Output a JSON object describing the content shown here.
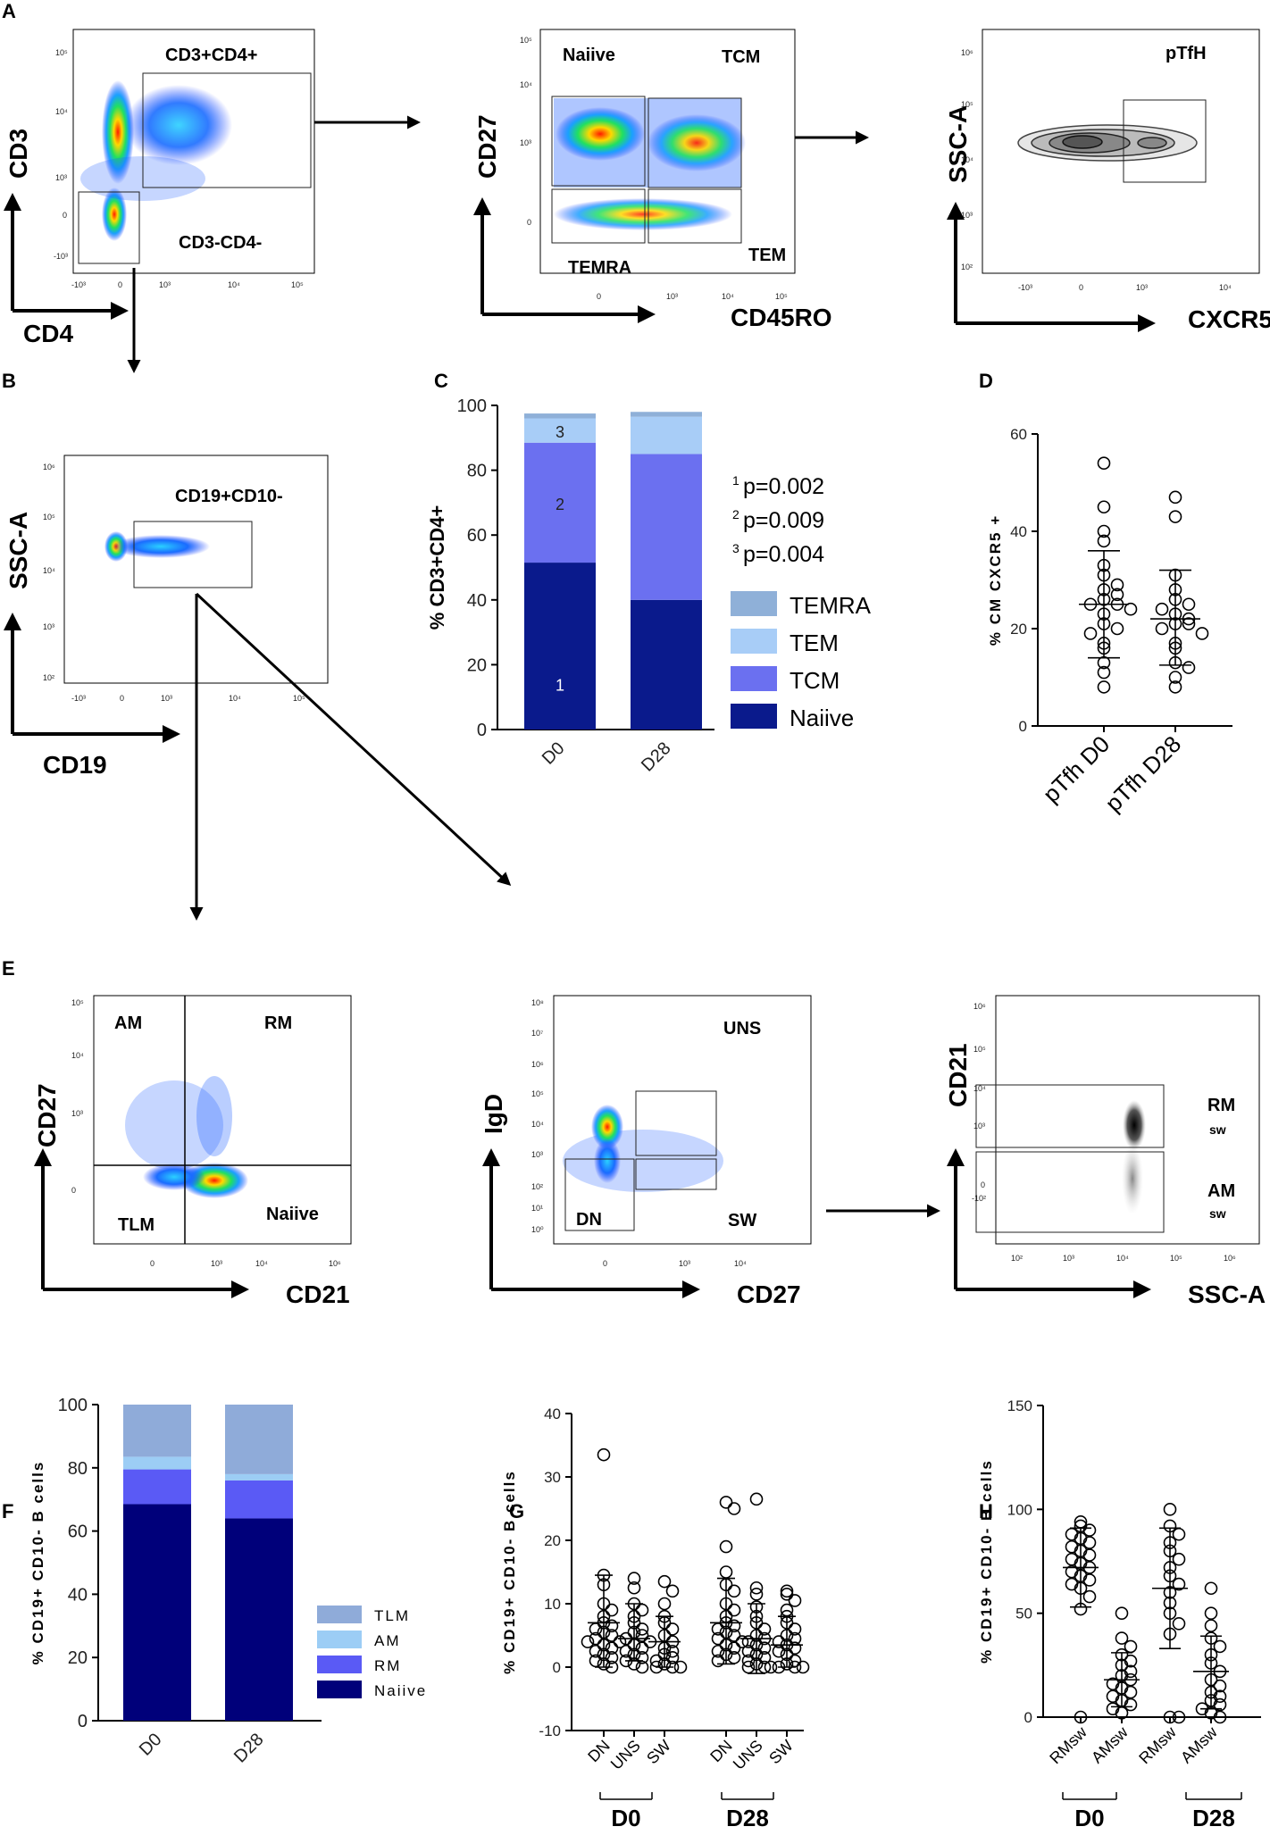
{
  "panel_letters": {
    "A": "A",
    "B": "B",
    "C": "C",
    "D": "D",
    "E": "E",
    "F": "F",
    "G": "G",
    "H": "H"
  },
  "log_ticks": {
    "n3": "-10³",
    "zero": "0",
    "p3": "10³",
    "p4": "10⁴",
    "p5": "10⁵",
    "p6": "10⁶",
    "p2": "10²",
    "p7": "10⁷",
    "p8": "10⁸",
    "p1": "10¹",
    "p0": "10⁰",
    "n2": "-10²"
  },
  "panel_a": {
    "plot1": {
      "y_label": "CD3",
      "x_label": "CD4",
      "gate_top": "CD3+CD4+",
      "gate_bottom": "CD3-CD4-"
    },
    "plot2": {
      "y_label": "CD27",
      "x_label": "CD45RO",
      "q_tl": "Naiive",
      "q_tr": "TCM",
      "q_bl": "TEMRA",
      "q_br": "TEM"
    },
    "plot3": {
      "y_label": "SSC-A",
      "x_label": "CXCR5",
      "gate": "pTfH"
    }
  },
  "panel_b": {
    "y_label": "SSC-A",
    "x_label": "CD19",
    "gate": "CD19+CD10-"
  },
  "panel_e": {
    "plot1": {
      "y_label": "CD27",
      "x_label": "CD21",
      "q_tl": "AM",
      "q_tr": "RM",
      "q_bl": "TLM",
      "q_br": "Naiive"
    },
    "plot2": {
      "y_label": "IgD",
      "x_label": "CD27",
      "q_tr": "UNS",
      "q_bl": "DN",
      "q_br": "SW"
    },
    "plot3": {
      "y_label": "CD21",
      "x_label": "SSC-A",
      "top_main": "RM",
      "top_sub": "sw",
      "bot_main": "AM",
      "bot_sub": "sw"
    }
  },
  "chart_data": [
    {
      "id": "C",
      "type": "bar",
      "stacked": true,
      "categories": [
        "D0",
        "D28"
      ],
      "ylabel": "% CD3+CD4+",
      "ylim": [
        0,
        100
      ],
      "yticks": [
        "0",
        "20",
        "40",
        "60",
        "80",
        "100"
      ],
      "series": [
        {
          "name": "Naiive",
          "values": [
            51.5,
            40
          ],
          "color": "#0a1a8c"
        },
        {
          "name": "TCM",
          "values": [
            37,
            45
          ],
          "color": "#6b70f0"
        },
        {
          "name": "TEM",
          "values": [
            7.5,
            11.5
          ],
          "color": "#a8cdf7"
        },
        {
          "name": "TEMRA",
          "values": [
            1.5,
            1.5
          ],
          "color": "#8fb0d8"
        }
      ],
      "segment_labels": [
        "1",
        "2",
        "3"
      ],
      "pvalues": [
        {
          "sup": "1",
          "text": "p=0.002"
        },
        {
          "sup": "2",
          "text": "p=0.009"
        },
        {
          "sup": "3",
          "text": "p=0.004"
        }
      ],
      "legend": [
        "TEMRA",
        "TEM",
        "TCM",
        "Naiive"
      ]
    },
    {
      "id": "D",
      "type": "scatter",
      "categories": [
        "pTfh D0",
        "pTfh D28"
      ],
      "ylabel": "% CM CXCR5 +",
      "ylim": [
        0,
        60
      ],
      "yticks": [
        "0",
        "20",
        "40",
        "60"
      ],
      "groups": [
        {
          "name": "pTfh D0",
          "mean": 25,
          "sd_low": 14,
          "sd_high": 36,
          "values": [
            54,
            45,
            40,
            38,
            33,
            31,
            29,
            28,
            27,
            26,
            25,
            25,
            24,
            23,
            21,
            20,
            19,
            17,
            16,
            13,
            11,
            8
          ]
        },
        {
          "name": "pTfh D28",
          "mean": 22,
          "sd_low": 12.5,
          "sd_high": 32,
          "values": [
            47,
            43,
            31,
            28,
            26,
            25,
            24,
            23,
            22,
            21,
            21,
            20,
            19,
            17,
            16,
            13,
            12,
            10,
            8
          ]
        }
      ]
    },
    {
      "id": "F",
      "type": "bar",
      "stacked": true,
      "categories": [
        "D0",
        "D28"
      ],
      "ylabel": "% CD19+ CD10- B cells",
      "ylim": [
        0,
        100
      ],
      "yticks": [
        "0",
        "20",
        "40",
        "60",
        "80",
        "100"
      ],
      "series": [
        {
          "name": "Naiive",
          "values": [
            68.5,
            64
          ],
          "color": "#00007a"
        },
        {
          "name": "RM",
          "values": [
            11,
            12
          ],
          "color": "#5a5af5"
        },
        {
          "name": "AM",
          "values": [
            4,
            2
          ],
          "color": "#9ccdf5"
        },
        {
          "name": "TLM",
          "values": [
            16.5,
            22
          ],
          "color": "#8fabd9"
        }
      ],
      "legend": [
        "TLM",
        "AM",
        "RM",
        "Naiive"
      ]
    },
    {
      "id": "G",
      "type": "scatter",
      "categories": [
        "DN",
        "UNS",
        "SW",
        "DN",
        "UNS",
        "SW"
      ],
      "group_labels": [
        "D0",
        "D28"
      ],
      "ylabel": "% CD19+ CD10- B cells",
      "ylim": [
        -10,
        40
      ],
      "yticks": [
        "-10",
        "0",
        "10",
        "20",
        "30",
        "40"
      ],
      "groups": [
        {
          "name": "D0 DN",
          "mean": 7,
          "sd_low": 0,
          "sd_high": 14.5,
          "values": [
            33.5,
            14.5,
            13,
            10,
            9,
            8,
            7,
            6.5,
            6,
            5.5,
            5,
            4.5,
            4,
            4,
            3.5,
            3,
            2.5,
            2,
            1.5,
            1,
            0.5,
            0
          ]
        },
        {
          "name": "D0 UNS",
          "mean": 4.5,
          "sd_low": 1,
          "sd_high": 10,
          "values": [
            14,
            12.5,
            10,
            9,
            8,
            7,
            6,
            5.5,
            5,
            4.5,
            4,
            3.5,
            3,
            2.5,
            2,
            1.5,
            1,
            0.5,
            0
          ]
        },
        {
          "name": "D0 SW",
          "mean": 4,
          "sd_low": 0,
          "sd_high": 8,
          "values": [
            13.5,
            12,
            10,
            8,
            7,
            6,
            5,
            4,
            3,
            2.5,
            2,
            1.5,
            1,
            0.5,
            0,
            0,
            0
          ]
        },
        {
          "name": "D28 DN",
          "mean": 7,
          "sd_low": 0.5,
          "sd_high": 14,
          "values": [
            26,
            25,
            19,
            15,
            13,
            12,
            10,
            9,
            8,
            7,
            6.5,
            6,
            5.5,
            5,
            4.5,
            4,
            3.5,
            3,
            2.5,
            2,
            1.5,
            1
          ]
        },
        {
          "name": "D28 UNS",
          "mean": 4.5,
          "sd_low": -1,
          "sd_high": 10,
          "values": [
            26.5,
            12.5,
            11.5,
            9.5,
            8,
            7,
            6,
            5,
            4.5,
            4,
            3.5,
            3,
            2.5,
            2,
            1.5,
            1,
            0.5,
            0,
            0
          ]
        },
        {
          "name": "D28 SW",
          "mean": 3.5,
          "sd_low": 0,
          "sd_high": 8,
          "values": [
            12,
            11.5,
            10.5,
            9,
            8,
            7,
            6,
            5,
            4.5,
            4,
            3.5,
            3,
            2.5,
            2,
            1,
            0.5,
            0,
            0,
            0,
            0
          ]
        }
      ]
    },
    {
      "id": "H",
      "type": "scatter",
      "categories": [
        "RMsw",
        "AMsw",
        "RMsw",
        "AMsw"
      ],
      "group_labels": [
        "D0",
        "D28"
      ],
      "ylabel": "% CD19+ CD10- B cells",
      "ylim": [
        0,
        150
      ],
      "yticks": [
        "0",
        "50",
        "100",
        "150"
      ],
      "groups": [
        {
          "name": "D0 RMsw",
          "mean": 72,
          "sd_low": 53,
          "sd_high": 91,
          "values": [
            94,
            92,
            90,
            88,
            86,
            84,
            82,
            80,
            78,
            76,
            74,
            72,
            70,
            68,
            66,
            64,
            62,
            58,
            52,
            0
          ]
        },
        {
          "name": "D0 AMsw",
          "mean": 18,
          "sd_low": 5,
          "sd_high": 31,
          "values": [
            50,
            38,
            34,
            30,
            27,
            25,
            22,
            20,
            18,
            16,
            14,
            12,
            10,
            8,
            6,
            4,
            2
          ]
        },
        {
          "name": "D28 RMsw",
          "mean": 62,
          "sd_low": 33,
          "sd_high": 91,
          "values": [
            100,
            92,
            88,
            84,
            80,
            76,
            72,
            68,
            64,
            60,
            55,
            50,
            45,
            40,
            0,
            0
          ]
        },
        {
          "name": "D28 AMsw",
          "mean": 22,
          "sd_low": 4,
          "sd_high": 39,
          "values": [
            62,
            50,
            44,
            38,
            34,
            30,
            26,
            22,
            18,
            15,
            12,
            10,
            8,
            6,
            4,
            2,
            0
          ]
        }
      ]
    }
  ]
}
